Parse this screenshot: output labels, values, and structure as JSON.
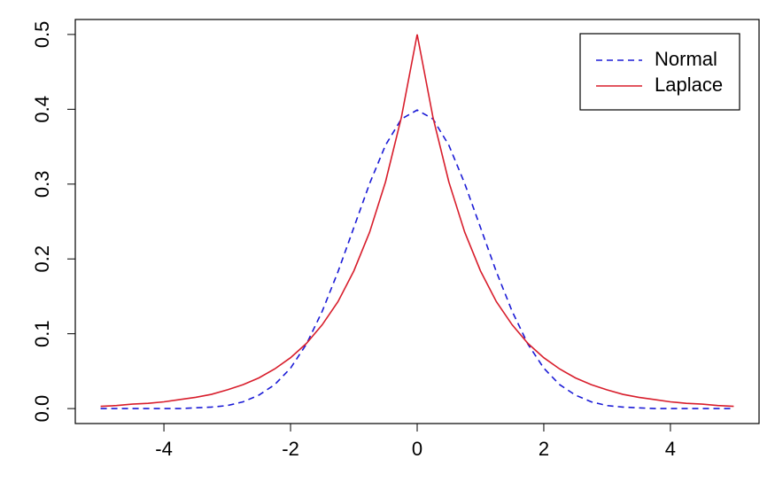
{
  "chart_data": {
    "type": "line",
    "x": [
      -5,
      -4.75,
      -4.5,
      -4.25,
      -4,
      -3.75,
      -3.5,
      -3.25,
      -3,
      -2.75,
      -2.5,
      -2.25,
      -2,
      -1.75,
      -1.5,
      -1.25,
      -1,
      -0.75,
      -0.5,
      -0.25,
      0,
      0.25,
      0.5,
      0.75,
      1,
      1.25,
      1.5,
      1.75,
      2,
      2.25,
      2.5,
      2.75,
      3,
      3.25,
      3.5,
      3.75,
      4,
      4.25,
      4.5,
      4.75,
      5
    ],
    "series": [
      {
        "name": "Normal",
        "color": "#1a1ad6",
        "linestyle": "dashed",
        "values": [
          0,
          0,
          0,
          0,
          0,
          0,
          0.001,
          0.002,
          0.004,
          0.009,
          0.018,
          0.032,
          0.054,
          0.086,
          0.13,
          0.183,
          0.242,
          0.301,
          0.352,
          0.387,
          0.399,
          0.387,
          0.352,
          0.301,
          0.242,
          0.183,
          0.13,
          0.086,
          0.054,
          0.032,
          0.018,
          0.009,
          0.004,
          0.002,
          0.001,
          0,
          0,
          0,
          0,
          0,
          0
        ]
      },
      {
        "name": "Laplace",
        "color": "#d81e2c",
        "linestyle": "solid",
        "values": [
          0.003,
          0.004,
          0.006,
          0.007,
          0.009,
          0.012,
          0.015,
          0.019,
          0.025,
          0.032,
          0.041,
          0.053,
          0.068,
          0.087,
          0.112,
          0.143,
          0.184,
          0.236,
          0.303,
          0.389,
          0.5,
          0.389,
          0.303,
          0.236,
          0.184,
          0.143,
          0.112,
          0.087,
          0.068,
          0.053,
          0.041,
          0.032,
          0.025,
          0.019,
          0.015,
          0.012,
          0.009,
          0.007,
          0.006,
          0.004,
          0.003
        ]
      }
    ],
    "xlim": [
      -5.4,
      5.4
    ],
    "xticks": [
      -4,
      -2,
      0,
      2,
      4
    ],
    "ylim": [
      -0.02,
      0.52
    ],
    "yticks": [
      {
        "value": 0,
        "label": "0.0"
      },
      0.1,
      0.2,
      0.3,
      0.4,
      0.5
    ],
    "legend": "top-right"
  }
}
